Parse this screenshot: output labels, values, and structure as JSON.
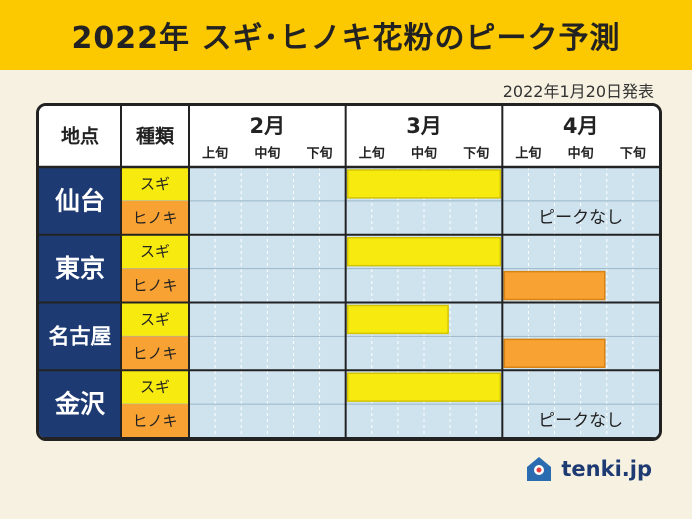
{
  "header": {
    "title": "2022年 スギ･ヒノキ花粉のピーク予測",
    "date": "2022年1月20日発表"
  },
  "brand": {
    "name": "tenki.jp",
    "mark": "house-weather-icon"
  },
  "colors": {
    "title_bar": "#fcc800",
    "sugi": "#f7ea0f",
    "hinoki": "#f7a233",
    "city_bg": "#1e3a73",
    "grid_bg": "#cfe3ef",
    "header_bg": "#ffffff"
  },
  "chart_data": {
    "type": "table",
    "column_headers": {
      "location": "地点",
      "type": "種類"
    },
    "months": [
      {
        "label": "2月",
        "periods": [
          "上旬",
          "中旬",
          "下旬"
        ]
      },
      {
        "label": "3月",
        "periods": [
          "上旬",
          "中旬",
          "下旬"
        ]
      },
      {
        "label": "4月",
        "periods": [
          "上旬",
          "中旬",
          "下旬"
        ]
      }
    ],
    "cities": [
      {
        "name": "仙台",
        "rows": [
          {
            "type": "スギ",
            "peak": [
              "3月上旬",
              "3月下旬"
            ]
          },
          {
            "type": "ヒノキ",
            "peak": null,
            "note": "ピークなし"
          }
        ]
      },
      {
        "name": "東京",
        "rows": [
          {
            "type": "スギ",
            "peak": [
              "3月上旬",
              "3月下旬"
            ]
          },
          {
            "type": "ヒノキ",
            "peak": [
              "4月上旬",
              "4月中旬"
            ]
          }
        ]
      },
      {
        "name": "名古屋",
        "rows": [
          {
            "type": "スギ",
            "peak": [
              "3月上旬",
              "3月中旬"
            ]
          },
          {
            "type": "ヒノキ",
            "peak": [
              "4月上旬",
              "4月中旬"
            ]
          }
        ]
      },
      {
        "name": "金沢",
        "rows": [
          {
            "type": "スギ",
            "peak": [
              "3月上旬",
              "3月下旬"
            ]
          },
          {
            "type": "ヒノキ",
            "peak": null,
            "note": "ピークなし"
          }
        ]
      }
    ]
  }
}
